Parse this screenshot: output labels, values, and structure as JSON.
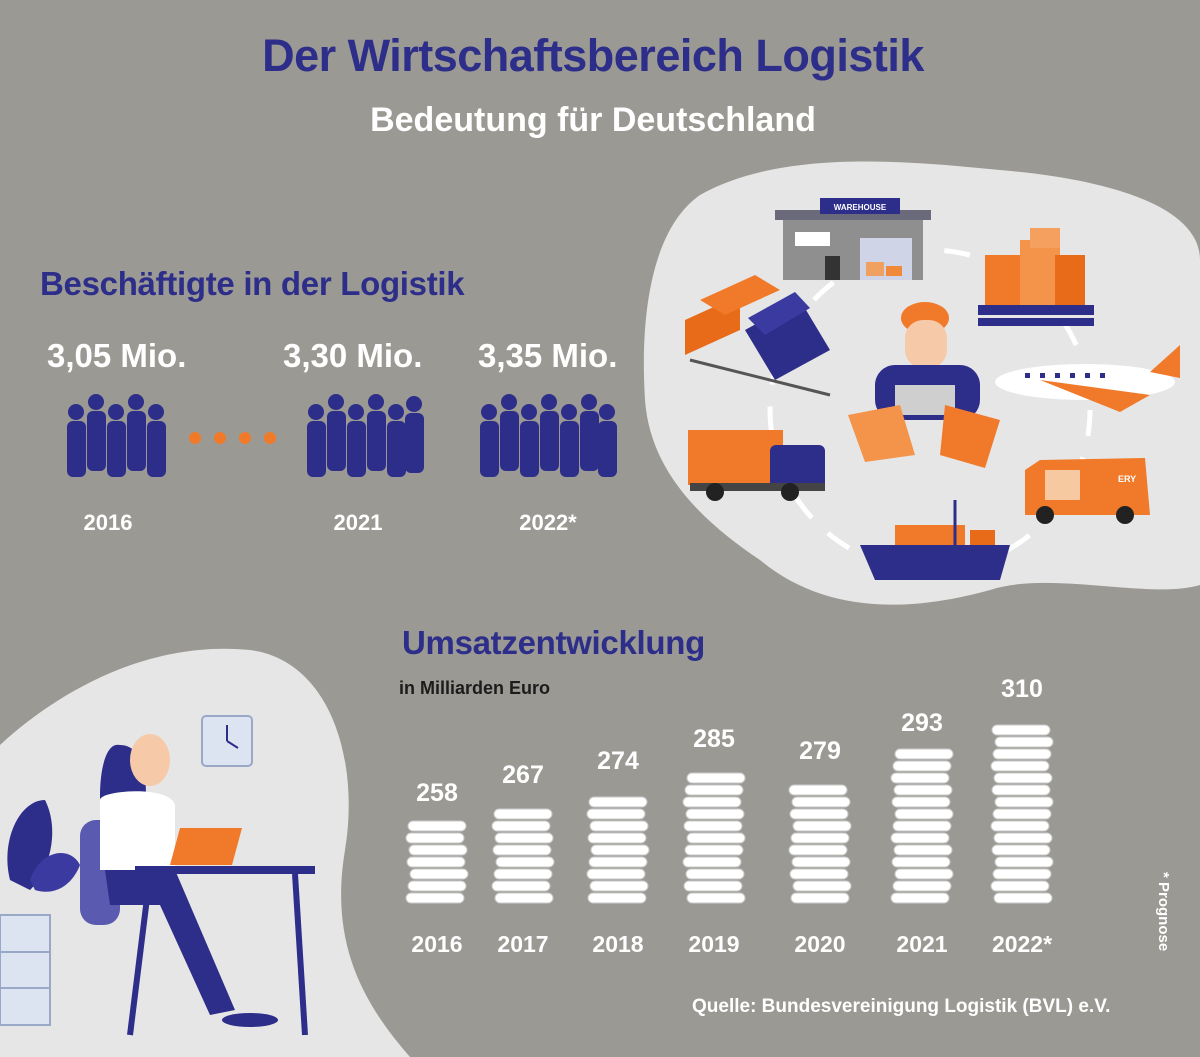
{
  "header": {
    "title": "Der Wirtschaftsbereich Logistik",
    "subtitle": "Bedeutung für Deutschland"
  },
  "employment": {
    "heading": "Beschäftigte in der Logistik",
    "items": [
      {
        "value": "3,05 Mio.",
        "year": "2016"
      },
      {
        "value": "3,30 Mio.",
        "year": "2021"
      },
      {
        "value": "3,35 Mio.",
        "year": "2022*"
      }
    ]
  },
  "illustration": {
    "warehouse_sign": "WAREHOUSE",
    "van_sign": "ERY"
  },
  "chart_data": {
    "type": "bar",
    "title": "Umsatzentwicklung",
    "ylabel": "in Milliarden Euro",
    "categories": [
      "2016",
      "2017",
      "2018",
      "2019",
      "2020",
      "2021",
      "2022*"
    ],
    "values": [
      258,
      267,
      274,
      285,
      279,
      293,
      310
    ],
    "labels": [
      "258",
      "267",
      "274",
      "285",
      "279",
      "293",
      "310"
    ]
  },
  "footnote": "* Prognose",
  "source": "Quelle: Bundesvereinigung Logistik (BVL) e.V.",
  "colors": {
    "background": "#9b9993",
    "navy": "#2d2d8a",
    "orange": "#f07a2a",
    "light_blob": "#e6e6e6"
  }
}
